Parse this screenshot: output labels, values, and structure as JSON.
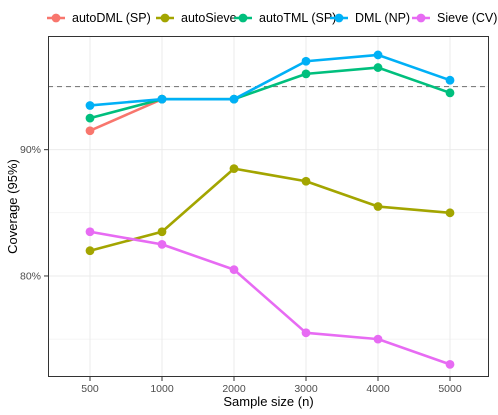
{
  "chart_data": {
    "type": "line",
    "title": "",
    "xlabel": "Sample size (n)",
    "ylabel": "Coverage (95%)",
    "categories": [
      "500",
      "1000",
      "2000",
      "3000",
      "4000",
      "5000"
    ],
    "ylim": [
      72,
      99
    ],
    "y_ticks": [
      80,
      90
    ],
    "y_tick_labels": [
      "80%",
      "90%"
    ],
    "reference_line": {
      "y": 95,
      "style": "dashed",
      "color": "#7f7f7f"
    },
    "grid": true,
    "legend_position": "top",
    "series": [
      {
        "name": "autoDML (SP)",
        "color": "#F8766D",
        "values": [
          91.5,
          94.0,
          null,
          null,
          null,
          null
        ]
      },
      {
        "name": "autoSieve",
        "color": "#A3A500",
        "values": [
          82.0,
          83.5,
          88.5,
          87.5,
          85.5,
          85.0
        ]
      },
      {
        "name": "autoTML (SP)",
        "color": "#00BF7D",
        "values": [
          92.5,
          94.0,
          94.0,
          96.0,
          96.5,
          94.5
        ]
      },
      {
        "name": "DML (NP)",
        "color": "#00B0F6",
        "values": [
          93.5,
          94.0,
          94.0,
          97.0,
          97.5,
          95.5
        ]
      },
      {
        "name": "Sieve (CV)",
        "color": "#E76BF3",
        "values": [
          83.5,
          82.5,
          80.5,
          75.5,
          75.0,
          73.0
        ]
      }
    ]
  }
}
